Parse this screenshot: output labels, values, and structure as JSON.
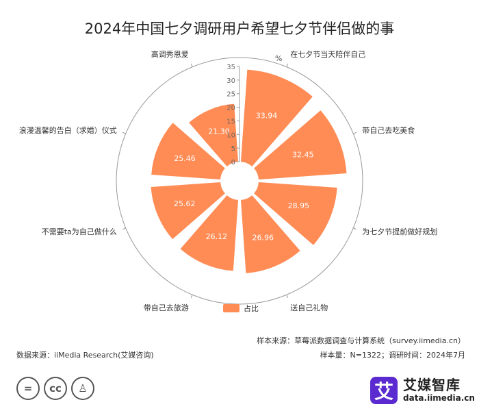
{
  "title": "2024年中国七夕调研用户希望七夕节伴侣做的事",
  "legend_label": "占比",
  "footer": {
    "sample_source": "样本来源：草莓派数据调查与计算系统（survey.iimedia.cn）",
    "data_source": "数据来源：iiMedia Research(艾媒咨询)",
    "sample_meta": "样本量：N=1322；调研时间：2024年7月"
  },
  "cc_icons": [
    "equals-icon",
    "cc-icon",
    "person-icon"
  ],
  "cc_glyphs": [
    "=",
    "cc",
    "♙"
  ],
  "brand": {
    "logo_char": "艾",
    "name": "艾媒智库",
    "url": "data.iimedia.cn"
  },
  "colors": {
    "bar": "#ff8c55",
    "axis": "#999999",
    "text": "#333333",
    "brand": "#5b2bd1"
  },
  "chart_data": {
    "type": "bar",
    "subtype": "polar",
    "unit": "%",
    "radial_axis": {
      "min": 0,
      "max": 35,
      "ticks": [
        0,
        5,
        10,
        15,
        20,
        25,
        30,
        35
      ]
    },
    "categories": [
      "在七夕节当天陪伴自己",
      "带自己去吃美食",
      "为七夕节提前做好规划",
      "送自己礼物",
      "带自己去旅游",
      "不需要ta为自己做什么",
      "浪漫温馨的告白（求婚）仪式",
      "高调秀恩爱"
    ],
    "series": [
      {
        "name": "占比",
        "values": [
          33.94,
          32.45,
          28.95,
          26.96,
          26.12,
          25.62,
          25.46,
          21.3
        ]
      }
    ],
    "value_labels": [
      "33.94",
      "32.45",
      "28.95",
      "26.96",
      "26.12",
      "25.62",
      "25.46",
      "21.30"
    ],
    "legend": "bottom"
  }
}
